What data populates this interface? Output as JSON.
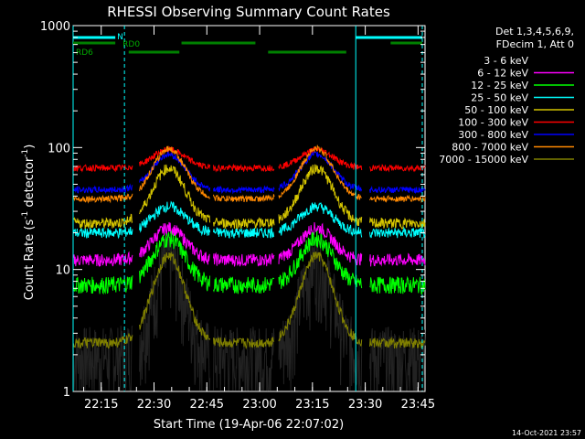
{
  "chart_data": {
    "type": "line",
    "title": "RHESSI Observing Summary Count Rates",
    "xlabel": "Start Time (19-Apr-06 22:07:02)",
    "ylabel_main": "Count Rate (s",
    "ylabel_sup1": "-1",
    "ylabel_mid": " detector",
    "ylabel_sup2": "-1",
    "ylabel_end": ")",
    "yscale": "log",
    "ylim": [
      1,
      1000
    ],
    "xlim_minutes": [
      22.117,
      23.783
    ],
    "x_ticks": [
      "22:15",
      "22:30",
      "22:45",
      "23:00",
      "23:15",
      "23:30",
      "23:45"
    ],
    "x_tick_minutes": [
      22.25,
      22.5,
      22.75,
      23.0,
      23.25,
      23.5,
      23.75
    ],
    "y_ticks": [
      "1",
      "10",
      "100",
      "1000"
    ],
    "y_tick_values": [
      1,
      10,
      100,
      1000
    ],
    "legend_header": [
      "Det 1,3,4,5,6,9,",
      "FDecim 1, Att 0"
    ],
    "series": [
      {
        "name": "3 - 6 keV",
        "color": "#000000",
        "base": 2.0,
        "peak": 12,
        "noise": 0.35
      },
      {
        "name": "6 - 12 keV",
        "color": "#ff00ff",
        "base": 12,
        "peak": 22,
        "noise": 0.06
      },
      {
        "name": "12 - 25 keV",
        "color": "#00ff00",
        "base": 7.5,
        "peak": 18,
        "noise": 0.08
      },
      {
        "name": "25 - 50 keV",
        "color": "#00ffff",
        "base": 20,
        "peak": 33,
        "noise": 0.05
      },
      {
        "name": "50 - 100 keV",
        "color": "#d4c400",
        "base": 24,
        "peak": 68,
        "noise": 0.05
      },
      {
        "name": "100 - 300 keV",
        "color": "#ff0000",
        "base": 68,
        "peak": 96,
        "noise": 0.03
      },
      {
        "name": "300 - 800 keV",
        "color": "#0000ff",
        "base": 45,
        "peak": 88,
        "noise": 0.03
      },
      {
        "name": "800 - 7000 keV",
        "color": "#ff8800",
        "base": 38,
        "peak": 98,
        "noise": 0.03
      },
      {
        "name": "7000 - 15000 keV",
        "color": "#808000",
        "base": 2.5,
        "peak": 13,
        "noise": 0.05
      }
    ],
    "annotations": {
      "n_label": "N",
      "rd0_label": "RD0",
      "rd6_label": "RD6"
    },
    "timestamp": "14-Oct-2021 23:57"
  }
}
